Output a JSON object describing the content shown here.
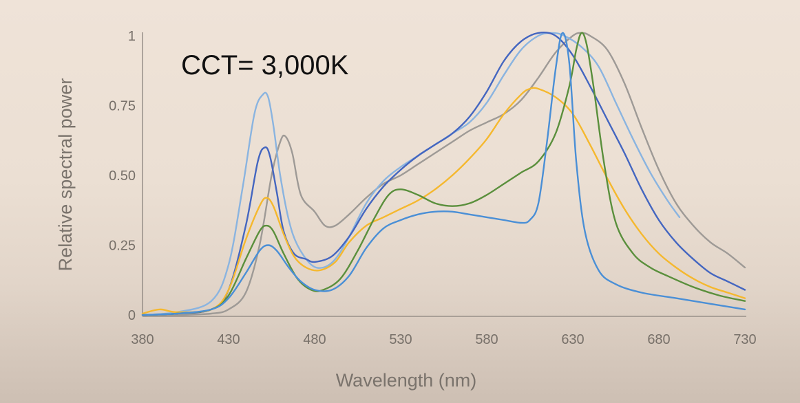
{
  "chart_data": {
    "type": "line",
    "title": "CCT= 3,000K",
    "xlabel": "Wavelength (nm)",
    "ylabel": "Relative spectral power",
    "xlim": [
      380,
      730
    ],
    "ylim": [
      0,
      1
    ],
    "x_ticks": [
      "380",
      "430",
      "480",
      "530",
      "580",
      "630",
      "680",
      "730"
    ],
    "y_ticks": [
      "0",
      "0.25",
      "0.50",
      "0.75",
      "1"
    ],
    "grid": false,
    "legend": "none",
    "series": [
      {
        "color": "#9e9a96",
        "points": [
          [
            380,
            0
          ],
          [
            400,
            0
          ],
          [
            420,
            0.005
          ],
          [
            430,
            0.02
          ],
          [
            440,
            0.08
          ],
          [
            448,
            0.25
          ],
          [
            455,
            0.5
          ],
          [
            460,
            0.62
          ],
          [
            463,
            0.64
          ],
          [
            467,
            0.58
          ],
          [
            472,
            0.43
          ],
          [
            480,
            0.37
          ],
          [
            486,
            0.32
          ],
          [
            492,
            0.32
          ],
          [
            500,
            0.36
          ],
          [
            510,
            0.42
          ],
          [
            520,
            0.47
          ],
          [
            530,
            0.5
          ],
          [
            540,
            0.54
          ],
          [
            550,
            0.58
          ],
          [
            560,
            0.62
          ],
          [
            570,
            0.66
          ],
          [
            580,
            0.69
          ],
          [
            590,
            0.72
          ],
          [
            600,
            0.77
          ],
          [
            610,
            0.85
          ],
          [
            620,
            0.94
          ],
          [
            630,
            1.0
          ],
          [
            635,
            1.01
          ],
          [
            640,
            1.0
          ],
          [
            650,
            0.95
          ],
          [
            660,
            0.83
          ],
          [
            670,
            0.67
          ],
          [
            680,
            0.52
          ],
          [
            690,
            0.4
          ],
          [
            700,
            0.32
          ],
          [
            710,
            0.26
          ],
          [
            720,
            0.22
          ],
          [
            730,
            0.17
          ]
        ]
      },
      {
        "color": "#8ab4e0",
        "points": [
          [
            380,
            0
          ],
          [
            400,
            0.01
          ],
          [
            420,
            0.05
          ],
          [
            430,
            0.18
          ],
          [
            438,
            0.45
          ],
          [
            445,
            0.72
          ],
          [
            450,
            0.79
          ],
          [
            453,
            0.78
          ],
          [
            456,
            0.68
          ],
          [
            460,
            0.5
          ],
          [
            465,
            0.34
          ],
          [
            470,
            0.25
          ],
          [
            478,
            0.18
          ],
          [
            485,
            0.17
          ],
          [
            492,
            0.2
          ],
          [
            500,
            0.28
          ],
          [
            510,
            0.4
          ],
          [
            520,
            0.48
          ],
          [
            530,
            0.53
          ],
          [
            540,
            0.57
          ],
          [
            550,
            0.61
          ],
          [
            560,
            0.65
          ],
          [
            570,
            0.69
          ],
          [
            580,
            0.76
          ],
          [
            590,
            0.86
          ],
          [
            600,
            0.95
          ],
          [
            610,
            1.0
          ],
          [
            618,
            1.01
          ],
          [
            625,
            1.0
          ],
          [
            635,
            0.96
          ],
          [
            645,
            0.89
          ],
          [
            655,
            0.76
          ],
          [
            665,
            0.63
          ],
          [
            675,
            0.51
          ],
          [
            685,
            0.41
          ],
          [
            692,
            0.35
          ]
        ]
      },
      {
        "color": "#4466c0",
        "points": [
          [
            380,
            0
          ],
          [
            400,
            0.005
          ],
          [
            420,
            0.02
          ],
          [
            430,
            0.09
          ],
          [
            440,
            0.32
          ],
          [
            447,
            0.55
          ],
          [
            451,
            0.6
          ],
          [
            454,
            0.57
          ],
          [
            458,
            0.44
          ],
          [
            462,
            0.3
          ],
          [
            468,
            0.22
          ],
          [
            475,
            0.2
          ],
          [
            480,
            0.19
          ],
          [
            490,
            0.21
          ],
          [
            500,
            0.28
          ],
          [
            510,
            0.38
          ],
          [
            520,
            0.46
          ],
          [
            530,
            0.52
          ],
          [
            540,
            0.57
          ],
          [
            550,
            0.61
          ],
          [
            560,
            0.65
          ],
          [
            570,
            0.71
          ],
          [
            580,
            0.8
          ],
          [
            590,
            0.91
          ],
          [
            600,
            0.98
          ],
          [
            610,
            1.01
          ],
          [
            620,
            1.0
          ],
          [
            630,
            0.93
          ],
          [
            640,
            0.82
          ],
          [
            650,
            0.7
          ],
          [
            660,
            0.58
          ],
          [
            670,
            0.45
          ],
          [
            680,
            0.34
          ],
          [
            690,
            0.26
          ],
          [
            700,
            0.2
          ],
          [
            710,
            0.15
          ],
          [
            720,
            0.12
          ],
          [
            730,
            0.09
          ]
        ]
      },
      {
        "color": "#f5b82e",
        "points": [
          [
            380,
            0.005
          ],
          [
            390,
            0.02
          ],
          [
            400,
            0.01
          ],
          [
            420,
            0.02
          ],
          [
            430,
            0.09
          ],
          [
            440,
            0.27
          ],
          [
            448,
            0.39
          ],
          [
            452,
            0.42
          ],
          [
            456,
            0.39
          ],
          [
            462,
            0.29
          ],
          [
            468,
            0.21
          ],
          [
            475,
            0.17
          ],
          [
            483,
            0.16
          ],
          [
            492,
            0.19
          ],
          [
            500,
            0.26
          ],
          [
            510,
            0.32
          ],
          [
            520,
            0.35
          ],
          [
            530,
            0.38
          ],
          [
            540,
            0.41
          ],
          [
            550,
            0.45
          ],
          [
            560,
            0.5
          ],
          [
            570,
            0.56
          ],
          [
            580,
            0.63
          ],
          [
            590,
            0.72
          ],
          [
            600,
            0.79
          ],
          [
            605,
            0.81
          ],
          [
            610,
            0.81
          ],
          [
            620,
            0.78
          ],
          [
            630,
            0.72
          ],
          [
            640,
            0.61
          ],
          [
            650,
            0.49
          ],
          [
            660,
            0.38
          ],
          [
            670,
            0.29
          ],
          [
            680,
            0.22
          ],
          [
            690,
            0.17
          ],
          [
            700,
            0.13
          ],
          [
            710,
            0.1
          ],
          [
            720,
            0.08
          ],
          [
            730,
            0.06
          ]
        ]
      },
      {
        "color": "#5a8f3c",
        "points": [
          [
            380,
            0
          ],
          [
            400,
            0.005
          ],
          [
            420,
            0.02
          ],
          [
            430,
            0.07
          ],
          [
            440,
            0.2
          ],
          [
            448,
            0.3
          ],
          [
            452,
            0.32
          ],
          [
            456,
            0.3
          ],
          [
            462,
            0.22
          ],
          [
            470,
            0.13
          ],
          [
            478,
            0.09
          ],
          [
            485,
            0.09
          ],
          [
            495,
            0.13
          ],
          [
            505,
            0.23
          ],
          [
            515,
            0.35
          ],
          [
            523,
            0.43
          ],
          [
            530,
            0.45
          ],
          [
            540,
            0.43
          ],
          [
            550,
            0.4
          ],
          [
            560,
            0.39
          ],
          [
            570,
            0.4
          ],
          [
            580,
            0.43
          ],
          [
            590,
            0.47
          ],
          [
            600,
            0.51
          ],
          [
            610,
            0.55
          ],
          [
            620,
            0.65
          ],
          [
            628,
            0.82
          ],
          [
            632,
            0.95
          ],
          [
            635,
            1.01
          ],
          [
            638,
            0.97
          ],
          [
            642,
            0.82
          ],
          [
            648,
            0.55
          ],
          [
            655,
            0.33
          ],
          [
            665,
            0.22
          ],
          [
            675,
            0.17
          ],
          [
            685,
            0.14
          ],
          [
            700,
            0.1
          ],
          [
            715,
            0.07
          ],
          [
            730,
            0.05
          ]
        ]
      },
      {
        "color": "#4a8fd6",
        "points": [
          [
            380,
            0
          ],
          [
            400,
            0.005
          ],
          [
            420,
            0.02
          ],
          [
            430,
            0.06
          ],
          [
            440,
            0.15
          ],
          [
            448,
            0.23
          ],
          [
            453,
            0.25
          ],
          [
            458,
            0.23
          ],
          [
            465,
            0.17
          ],
          [
            472,
            0.12
          ],
          [
            480,
            0.09
          ],
          [
            490,
            0.09
          ],
          [
            500,
            0.14
          ],
          [
            510,
            0.24
          ],
          [
            520,
            0.31
          ],
          [
            530,
            0.34
          ],
          [
            540,
            0.36
          ],
          [
            550,
            0.37
          ],
          [
            560,
            0.37
          ],
          [
            570,
            0.36
          ],
          [
            580,
            0.35
          ],
          [
            590,
            0.34
          ],
          [
            600,
            0.33
          ],
          [
            605,
            0.34
          ],
          [
            610,
            0.4
          ],
          [
            615,
            0.62
          ],
          [
            620,
            0.88
          ],
          [
            624,
            1.01
          ],
          [
            628,
            0.9
          ],
          [
            632,
            0.55
          ],
          [
            637,
            0.3
          ],
          [
            645,
            0.16
          ],
          [
            655,
            0.11
          ],
          [
            670,
            0.08
          ],
          [
            690,
            0.06
          ],
          [
            710,
            0.04
          ],
          [
            730,
            0.02
          ]
        ]
      }
    ]
  }
}
